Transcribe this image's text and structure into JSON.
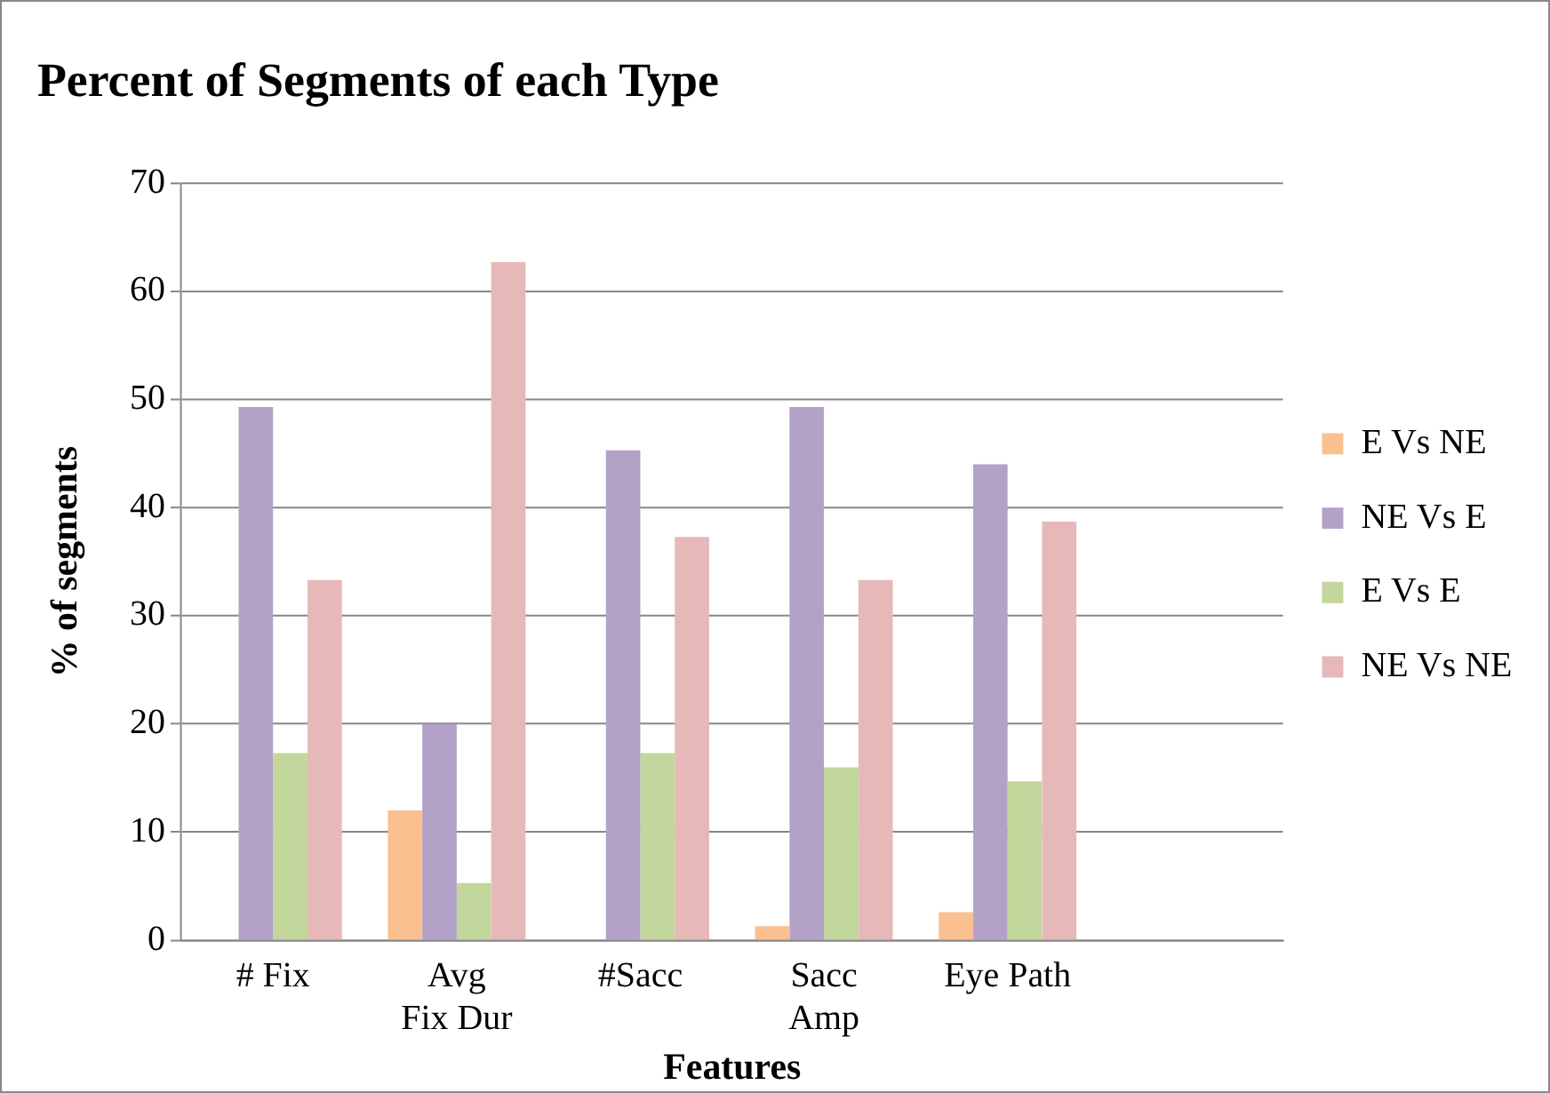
{
  "chart_data": {
    "type": "bar",
    "title": "Percent of Segments of each Type",
    "xlabel": "Features",
    "ylabel": "% of segments",
    "categories": [
      "# Fix",
      "Avg Fix Dur",
      "#Sacc",
      "Sacc Amp",
      "Eye Path",
      null
    ],
    "series": [
      {
        "name": "E Vs NE",
        "color": "#fac090",
        "values": [
          0,
          12,
          0,
          1.3,
          2.6,
          null
        ]
      },
      {
        "name": "NE Vs E",
        "color": "#b3a2c7",
        "values": [
          49.3,
          20,
          45.3,
          49.3,
          44,
          null
        ]
      },
      {
        "name": "E Vs E",
        "color": "#c3d69b",
        "values": [
          17.3,
          5.3,
          17.3,
          16,
          14.7,
          null
        ]
      },
      {
        "name": "NE Vs NE",
        "color": "#e6b9b8",
        "values": [
          33.3,
          62.7,
          37.3,
          33.3,
          38.7,
          null
        ]
      }
    ],
    "ylim": [
      0,
      70
    ],
    "yticks": [
      0,
      10,
      20,
      30,
      40,
      50,
      60,
      70
    ],
    "grid": "y",
    "legend": "right"
  }
}
